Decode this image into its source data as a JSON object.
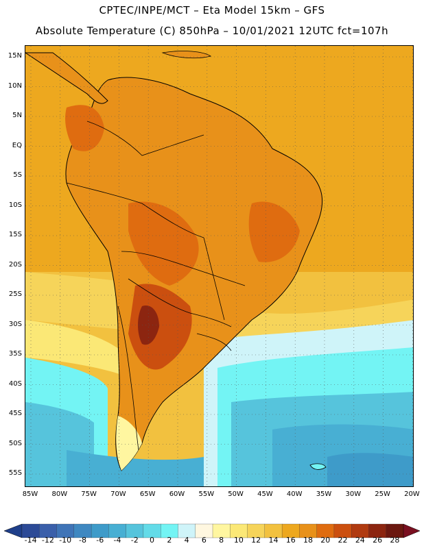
{
  "header": {
    "line1": "CPTEC/INPE/MCT  –   Eta Model 15km  –  GFS",
    "line2": "Absolute Temperature (C) 850hPa  –  10/01/2021 12UTC fct=107h"
  },
  "map": {
    "lat_labels": [
      "15N",
      "10N",
      "5N",
      "EQ",
      "5S",
      "10S",
      "15S",
      "20S",
      "25S",
      "30S",
      "35S",
      "40S",
      "45S",
      "50S",
      "55S"
    ],
    "lon_labels": [
      "85W",
      "80W",
      "75W",
      "70W",
      "65W",
      "60W",
      "55W",
      "50W",
      "45W",
      "40W",
      "35W",
      "30W",
      "25W",
      "20W"
    ],
    "gridlines": "dotted",
    "border_color": "#000000"
  },
  "colorbar": {
    "labels": [
      "-14",
      "-12",
      "-10",
      "-8",
      "-6",
      "-4",
      "-2",
      "0",
      "2",
      "4",
      "6",
      "8",
      "10",
      "12",
      "14",
      "16",
      "18",
      "20",
      "22",
      "24",
      "26",
      "28"
    ],
    "colors": [
      "#2c4a96",
      "#3a5faa",
      "#3f74b7",
      "#3f88c1",
      "#3e9bc9",
      "#48afd3",
      "#56c4dc",
      "#63dbe8",
      "#73f4f4",
      "#cff4f9",
      "#fff7e0",
      "#fff6a0",
      "#fbe876",
      "#f6d45a",
      "#f2c13f",
      "#eda81f",
      "#e8911a",
      "#df6c10",
      "#cb4f0f",
      "#b03a10",
      "#8c2510",
      "#6b1810"
    ],
    "under_color": "#1f3f8a",
    "over_color": "#7a1020"
  }
}
